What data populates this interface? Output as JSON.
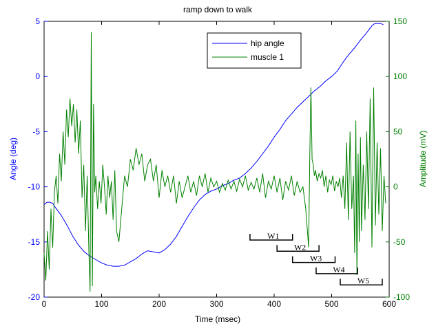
{
  "chart_data": {
    "type": "line",
    "title": "ramp down to walk",
    "xlabel": "Time (msec)",
    "ylabel_left": "Angle (deg)",
    "ylabel_right": "Amplitude (mV)",
    "xlim": [
      0,
      600
    ],
    "ylim_left": [
      -20,
      5
    ],
    "ylim_right": [
      -100,
      150
    ],
    "x_ticks": [
      "0",
      "100",
      "200",
      "300",
      "400",
      "500",
      "600"
    ],
    "y_left_ticks": [
      "-20",
      "-15",
      "-10",
      "-5",
      "0",
      "5"
    ],
    "y_right_ticks": [
      "-100",
      "-50",
      "0",
      "50",
      "100",
      "150"
    ],
    "legend_position": "top-right",
    "grid": false,
    "colors": {
      "left_axis": "#0000ff",
      "right_axis": "#008000",
      "hip": "#0000ff",
      "muscle": "#008000"
    },
    "series": [
      {
        "name": "hip angle",
        "axis": "left",
        "x": [
          0,
          5,
          10,
          15,
          20,
          30,
          40,
          50,
          60,
          70,
          80,
          90,
          100,
          110,
          120,
          130,
          140,
          150,
          160,
          170,
          180,
          190,
          200,
          210,
          220,
          230,
          240,
          250,
          260,
          270,
          280,
          290,
          300,
          310,
          320,
          330,
          340,
          350,
          360,
          370,
          380,
          390,
          400,
          410,
          420,
          430,
          440,
          450,
          460,
          470,
          480,
          490,
          500,
          510,
          520,
          530,
          540,
          550,
          560,
          570,
          575,
          580,
          585,
          590
        ],
        "y": [
          -11.6,
          -11.4,
          -11.4,
          -11.5,
          -11.9,
          -12.6,
          -13.5,
          -14.5,
          -15.3,
          -15.9,
          -16.3,
          -16.6,
          -16.9,
          -17.1,
          -17.2,
          -17.2,
          -17.1,
          -16.8,
          -16.5,
          -16.1,
          -15.8,
          -15.9,
          -16.0,
          -15.7,
          -15.2,
          -14.5,
          -13.6,
          -12.7,
          -11.9,
          -11.2,
          -10.7,
          -10.4,
          -10.2,
          -9.9,
          -9.7,
          -9.4,
          -9.2,
          -8.8,
          -8.3,
          -7.7,
          -7.0,
          -6.3,
          -5.5,
          -4.8,
          -4.0,
          -3.4,
          -2.8,
          -2.3,
          -1.8,
          -1.3,
          -0.9,
          -0.4,
          0.0,
          0.5,
          1.3,
          2.0,
          2.6,
          3.3,
          3.9,
          4.6,
          4.8,
          4.8,
          4.8,
          4.7
        ]
      },
      {
        "name": "muscle 1",
        "axis": "right",
        "x": [
          0,
          3,
          6,
          9,
          12,
          15,
          18,
          21,
          24,
          27,
          30,
          33,
          36,
          39,
          42,
          45,
          48,
          51,
          54,
          57,
          60,
          63,
          66,
          69,
          72,
          75,
          78,
          80,
          82,
          84,
          86,
          88,
          90,
          93,
          96,
          99,
          102,
          105,
          108,
          111,
          114,
          117,
          120,
          123,
          126,
          130,
          135,
          140,
          145,
          150,
          155,
          160,
          165,
          170,
          175,
          180,
          185,
          190,
          195,
          200,
          205,
          210,
          215,
          220,
          225,
          230,
          235,
          240,
          245,
          250,
          255,
          260,
          265,
          270,
          275,
          280,
          285,
          290,
          295,
          300,
          305,
          310,
          315,
          320,
          325,
          330,
          335,
          340,
          345,
          350,
          355,
          360,
          365,
          370,
          375,
          380,
          385,
          390,
          395,
          400,
          405,
          410,
          415,
          420,
          425,
          430,
          435,
          440,
          445,
          450,
          455,
          460,
          462,
          464,
          466,
          468,
          470,
          472,
          475,
          478,
          481,
          484,
          487,
          490,
          493,
          496,
          499,
          502,
          505,
          508,
          511,
          514,
          517,
          520,
          523,
          526,
          529,
          532,
          535,
          538,
          540,
          542,
          544,
          546,
          548,
          550,
          552,
          555,
          558,
          561,
          564,
          567,
          570,
          573,
          576,
          579,
          582,
          585,
          588,
          591,
          594
        ],
        "y": [
          -60,
          -85,
          -40,
          -75,
          -20,
          -55,
          -5,
          10,
          -15,
          30,
          5,
          50,
          20,
          70,
          45,
          80,
          55,
          75,
          40,
          70,
          30,
          60,
          -10,
          20,
          -40,
          10,
          -60,
          -95,
          140,
          -90,
          75,
          -5,
          10,
          -20,
          5,
          -15,
          20,
          0,
          -25,
          10,
          -10,
          5,
          -30,
          15,
          -40,
          -50,
          -20,
          10,
          0,
          25,
          15,
          35,
          20,
          30,
          5,
          20,
          25,
          5,
          20,
          -10,
          15,
          0,
          10,
          -5,
          10,
          -15,
          5,
          -10,
          0,
          10,
          -5,
          5,
          -8,
          10,
          0,
          12,
          -5,
          8,
          0,
          5,
          -5,
          3,
          -3,
          6,
          -2,
          5,
          -4,
          7,
          0,
          10,
          -3,
          4,
          -2,
          8,
          -5,
          12,
          -10,
          5,
          -2,
          10,
          -5,
          8,
          -12,
          5,
          -3,
          10,
          -8,
          5,
          -5,
          0,
          -20,
          -55,
          30,
          90,
          25,
          20,
          10,
          15,
          5,
          12,
          8,
          15,
          0,
          10,
          -5,
          6,
          2,
          10,
          -4,
          5,
          0,
          8,
          -10,
          10,
          -20,
          40,
          -30,
          50,
          -20,
          10,
          -60,
          60,
          -80,
          30,
          -50,
          45,
          -40,
          20,
          -30,
          50,
          -20,
          80,
          -55,
          90,
          -35,
          40,
          -25,
          35,
          -40,
          10,
          -15
        ]
      }
    ],
    "windows": [
      {
        "label": "W1",
        "x_start": 358,
        "x_end": 432
      },
      {
        "label": "W2",
        "x_start": 405,
        "x_end": 478
      },
      {
        "label": "W3",
        "x_start": 432,
        "x_end": 506
      },
      {
        "label": "W4",
        "x_start": 473,
        "x_end": 545
      },
      {
        "label": "W5",
        "x_start": 515,
        "x_end": 588
      }
    ]
  }
}
